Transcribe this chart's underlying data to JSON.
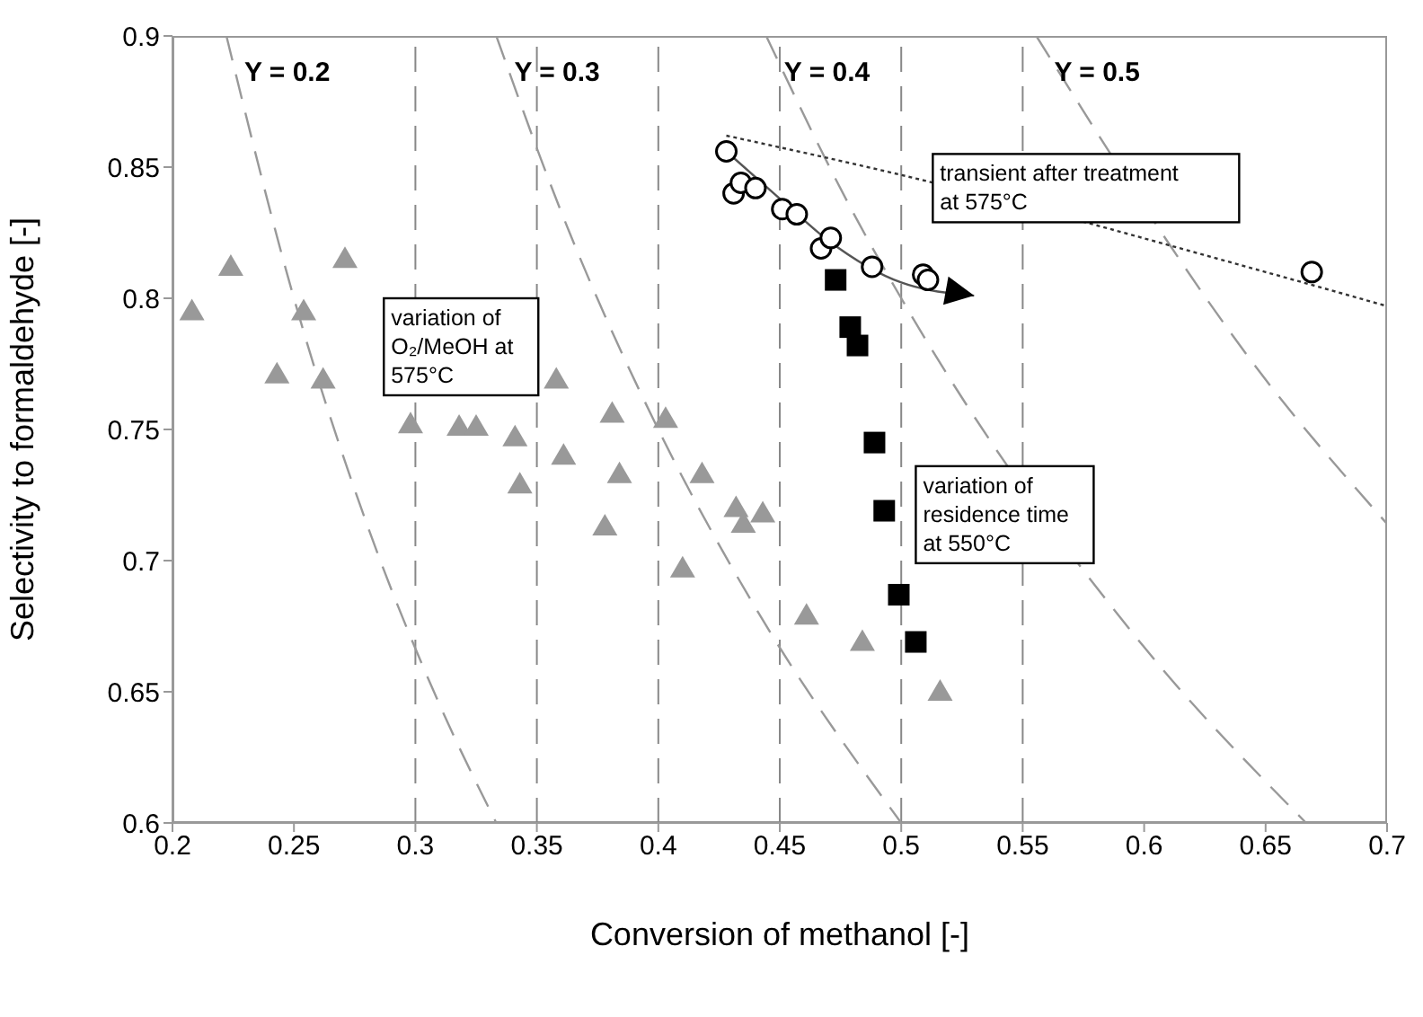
{
  "chart_data": {
    "type": "scatter",
    "xlabel": "Conversion of methanol [-]",
    "ylabel": "Selectivity to formaldehyde [-]",
    "xlim": [
      0.2,
      0.7
    ],
    "xticks": [
      0.2,
      0.25,
      0.3,
      0.35,
      0.4,
      0.45,
      0.5,
      0.55,
      0.6,
      0.65,
      0.7
    ],
    "ylim": [
      0.6,
      0.9
    ],
    "yticks": [
      0.6,
      0.65,
      0.7,
      0.75,
      0.8,
      0.85,
      0.9
    ],
    "grid": false,
    "legend": false,
    "ref_lines": [
      {
        "axis": "x",
        "value": 0.3,
        "line_style": "dashed",
        "color": "#888888"
      },
      {
        "axis": "x",
        "value": 0.35,
        "line_style": "dashed",
        "color": "#888888"
      },
      {
        "axis": "x",
        "value": 0.4,
        "line_style": "dashed",
        "color": "#888888"
      },
      {
        "axis": "x",
        "value": 0.45,
        "line_style": "dashed",
        "color": "#888888"
      },
      {
        "axis": "x",
        "value": 0.5,
        "line_style": "dashed",
        "color": "#888888"
      },
      {
        "axis": "x",
        "value": 0.55,
        "line_style": "dashed",
        "color": "#888888"
      }
    ],
    "series": [
      {
        "name": "Y = 0.2",
        "type": "line",
        "color": "#999999",
        "line_style": "dashed",
        "marker": "none",
        "x": [
          0.2222,
          0.25,
          0.28,
          0.31,
          0.3333
        ],
        "values": [
          0.9,
          0.8,
          0.714,
          0.645,
          0.6
        ]
      },
      {
        "name": "Y = 0.3",
        "type": "line",
        "color": "#999999",
        "line_style": "dashed",
        "marker": "none",
        "x": [
          0.3333,
          0.36,
          0.4,
          0.44,
          0.5
        ],
        "values": [
          0.9,
          0.833,
          0.75,
          0.682,
          0.6
        ]
      },
      {
        "name": "Y = 0.4",
        "type": "line",
        "color": "#999999",
        "line_style": "dashed",
        "marker": "none",
        "x": [
          0.4444,
          0.48,
          0.5,
          0.6,
          0.6667
        ],
        "values": [
          0.9,
          0.833,
          0.8,
          0.667,
          0.6
        ]
      },
      {
        "name": "Y = 0.5",
        "type": "line",
        "color": "#999999",
        "line_style": "dashed",
        "marker": "none",
        "x": [
          0.5556,
          0.65,
          0.7
        ],
        "values": [
          0.9,
          0.769,
          0.714
        ]
      },
      {
        "type": "line",
        "color": "#333333",
        "line_style": "dotted",
        "marker": "none",
        "x": [
          0.428,
          0.5,
          0.65,
          0.7
        ],
        "values": [
          0.862,
          0.847,
          0.81,
          0.797
        ]
      },
      {
        "type": "line",
        "color": "#555555",
        "line_style": "solid",
        "marker": "none",
        "x": [
          0.428,
          0.45,
          0.47,
          0.5,
          0.53
        ],
        "values": [
          0.856,
          0.838,
          0.822,
          0.806,
          0.801
        ]
      },
      {
        "color": "#999999",
        "marker": "triangle",
        "x": [
          0.208,
          0.224,
          0.243,
          0.254,
          0.262,
          0.271,
          0.298,
          0.318,
          0.325,
          0.341,
          0.343,
          0.358,
          0.361,
          0.378,
          0.381,
          0.384,
          0.403,
          0.41,
          0.418,
          0.432,
          0.435,
          0.443,
          0.461,
          0.484,
          0.516
        ],
        "values": [
          0.795,
          0.812,
          0.771,
          0.795,
          0.769,
          0.815,
          0.752,
          0.751,
          0.751,
          0.747,
          0.729,
          0.769,
          0.74,
          0.713,
          0.756,
          0.733,
          0.754,
          0.697,
          0.733,
          0.72,
          0.714,
          0.718,
          0.679,
          0.669,
          0.65
        ]
      },
      {
        "color": "#000000",
        "marker": "square",
        "x": [
          0.473,
          0.479,
          0.482,
          0.489,
          0.493,
          0.499,
          0.506
        ],
        "values": [
          0.807,
          0.789,
          0.782,
          0.745,
          0.719,
          0.687,
          0.669
        ]
      },
      {
        "color": "#000000",
        "marker": "circle",
        "x": [
          0.428,
          0.431,
          0.434,
          0.44,
          0.451,
          0.457,
          0.467,
          0.471,
          0.488,
          0.509,
          0.511,
          0.669
        ],
        "values": [
          0.856,
          0.84,
          0.844,
          0.842,
          0.834,
          0.832,
          0.819,
          0.823,
          0.812,
          0.809,
          0.807,
          0.81
        ]
      }
    ],
    "annotations": [
      "variation of\nO₂/MeOH at\n575°C",
      "transient after treatment\nat 575°C",
      "variation of\nresidence time\nat 550°C"
    ]
  }
}
